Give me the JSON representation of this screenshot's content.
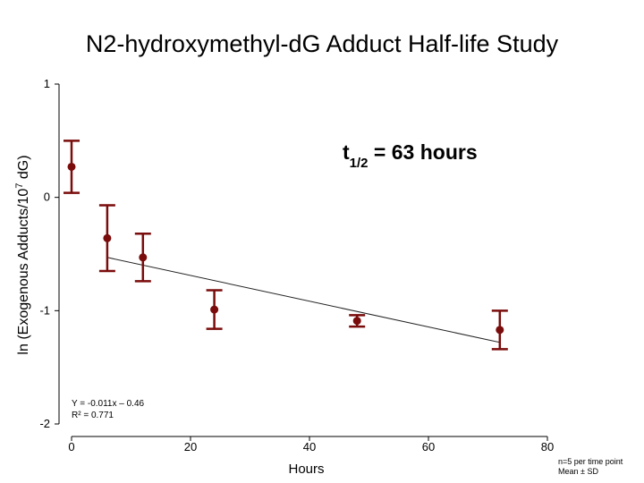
{
  "chart_data": {
    "type": "scatter",
    "title": "N2-hydroxymethyl-dG Adduct Half-life Study",
    "xlabel": "Hours",
    "ylabel_main": "ln (Exogenous Adducts/10",
    "ylabel_sup": "7",
    "ylabel_tail": " dG)",
    "xlim": [
      0,
      80
    ],
    "ylim": [
      -2,
      1
    ],
    "x_ticks": [
      0,
      20,
      40,
      60,
      80
    ],
    "x_tick_labels": [
      "0",
      "20",
      "40",
      "60",
      "80"
    ],
    "y_ticks": [
      1,
      0,
      -1,
      -2
    ],
    "y_tick_labels": [
      "1",
      "0",
      "-1",
      "-2"
    ],
    "series": [
      {
        "name": "mean",
        "color": "#7a0c0c",
        "points": [
          {
            "x": 0,
            "y": 0.27,
            "err": 0.23
          },
          {
            "x": 6,
            "y": -0.36,
            "err": 0.29
          },
          {
            "x": 12,
            "y": -0.53,
            "err": 0.21
          },
          {
            "x": 24,
            "y": -0.99,
            "err": 0.17
          },
          {
            "x": 48,
            "y": -1.09,
            "err": 0.05
          },
          {
            "x": 72,
            "y": -1.17,
            "err": 0.17
          }
        ]
      }
    ],
    "fit": {
      "x_start": 6,
      "y_start": -0.53,
      "x_end": 72,
      "y_end": -1.28,
      "equation": "Y = -0.011x – 0.46",
      "r_squared": "R² = 0.771"
    },
    "annotation": {
      "prefix": "t",
      "subscript": "1/2",
      "suffix": " = 63 hours"
    },
    "footnote_lines": [
      "n=5 per time point",
      "Mean ± SD"
    ]
  }
}
